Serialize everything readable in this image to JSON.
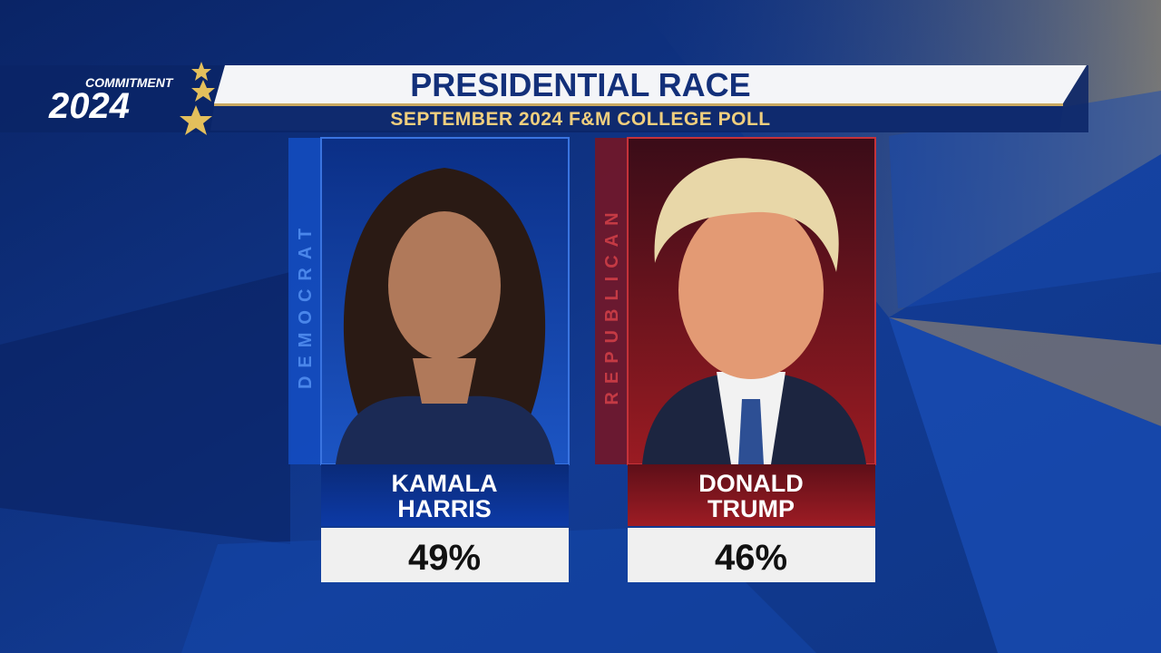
{
  "logo": {
    "line1": "COMMITMENT",
    "line2": "2024"
  },
  "header": {
    "title": "PRESIDENTIAL RACE",
    "subtitle": "SEPTEMBER 2024 F&M COLLEGE POLL"
  },
  "candidates": [
    {
      "party": "DEMOCRAT",
      "name_line1": "KAMALA",
      "name_line2": "HARRIS",
      "result": "49%"
    },
    {
      "party": "REPUBLICAN",
      "name_line1": "DONALD",
      "name_line2": "TRUMP",
      "result": "46%"
    }
  ]
}
